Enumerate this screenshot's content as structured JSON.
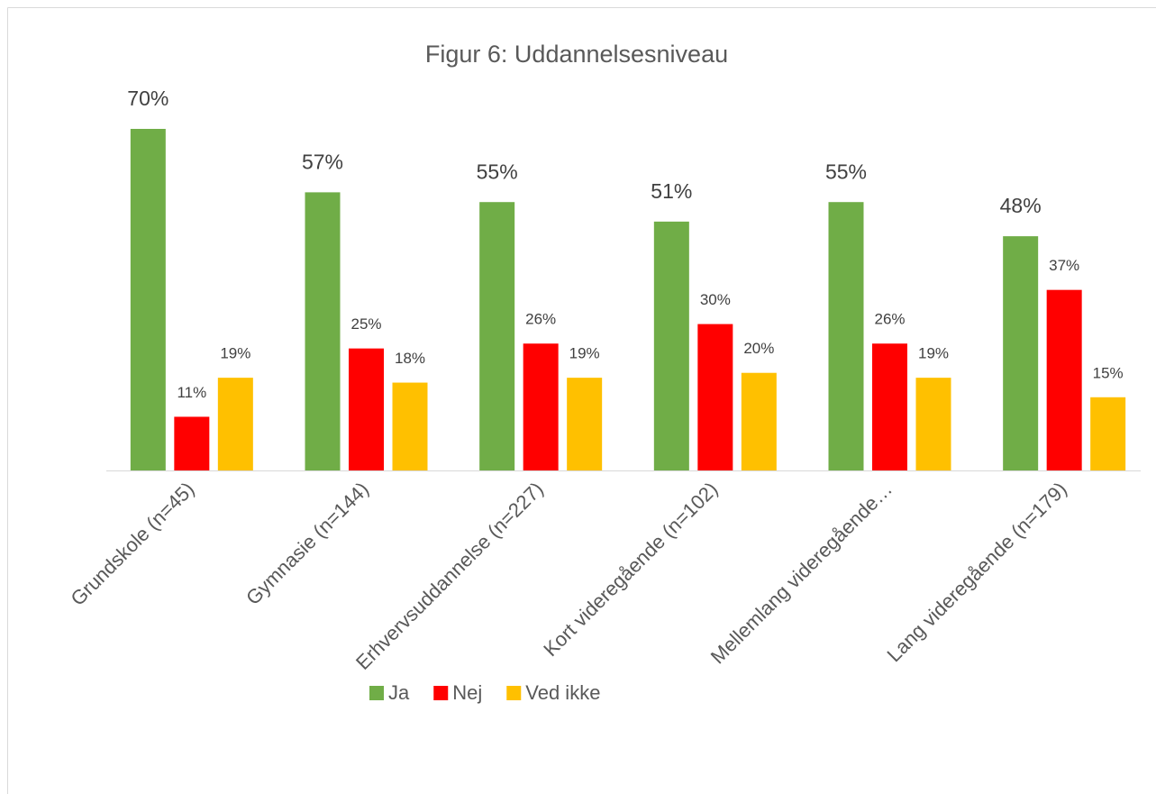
{
  "chart_data": {
    "type": "bar",
    "title": "Figur 6: Uddannelsesniveau",
    "categories": [
      "Grundskole (n=45)",
      "Gymnasie (n=144)",
      "Erhvervsuddannelse (n=227)",
      "Kort videregående (n=102)",
      "Mellemlang videregående…",
      "Lang videregående (n=179)"
    ],
    "series": [
      {
        "name": "Ja",
        "color": "#70ad47",
        "values": [
          70,
          57,
          55,
          51,
          55,
          48
        ],
        "value_labels": [
          "70%",
          "57%",
          "55%",
          "51%",
          "55%",
          "48%"
        ]
      },
      {
        "name": "Nej",
        "color": "#ff0000",
        "values": [
          11,
          25,
          26,
          30,
          26,
          37
        ],
        "value_labels": [
          "11%",
          "25%",
          "26%",
          "30%",
          "26%",
          "37%"
        ]
      },
      {
        "name": "Ved ikke",
        "color": "#ffc000",
        "values": [
          19,
          18,
          19,
          20,
          19,
          15
        ],
        "value_labels": [
          "19%",
          "18%",
          "19%",
          "20%",
          "19%",
          "15%"
        ]
      }
    ],
    "legend": "bottom"
  }
}
